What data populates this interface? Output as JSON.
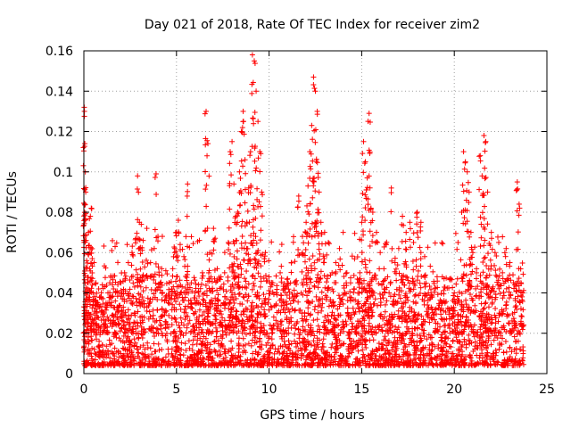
{
  "chart_data": {
    "type": "scatter",
    "title": "Day 021 of 2018, Rate Of TEC Index for receiver zim2",
    "xlabel": "GPS time / hours",
    "ylabel": "ROTI / TECUs",
    "xlim": [
      0,
      25
    ],
    "ylim": [
      0,
      0.16
    ],
    "x_ticks": [
      0,
      5,
      10,
      15,
      20,
      25
    ],
    "x_tick_labels": [
      "0",
      "5",
      "10",
      "15",
      "20",
      "25"
    ],
    "y_ticks": [
      0,
      0.02,
      0.04,
      0.06,
      0.08,
      0.1,
      0.12,
      0.14,
      0.16
    ],
    "y_tick_labels": [
      "0",
      "0.02",
      "0.04",
      "0.06",
      "0.08",
      "0.1",
      "0.12",
      "0.14",
      "0.16"
    ],
    "grid": true,
    "marker": "plus",
    "color": "#ff0000",
    "series": [
      {
        "name": "",
        "note_x_range_hours": [
          0,
          23.75
        ],
        "x": [
          0.0,
          0.02,
          0.03,
          0.05,
          0.08,
          0.1,
          0.12,
          0.15,
          0.2,
          0.25,
          0.3,
          0.35,
          0.4,
          0.45,
          0.5,
          0.55,
          0.6,
          0.65,
          0.7,
          0.75,
          0.8,
          0.9,
          1.0,
          1.1,
          1.2,
          1.3,
          1.4,
          1.5,
          1.6,
          1.7,
          1.8,
          1.9,
          2.0,
          2.2,
          2.4,
          2.6,
          2.8,
          2.9,
          3.0,
          3.1,
          3.2,
          3.4,
          3.6,
          3.8,
          3.9,
          4.0,
          4.2,
          4.4,
          4.6,
          4.8,
          4.9,
          5.0,
          5.1,
          5.2,
          5.4,
          5.6,
          5.8,
          6.0,
          6.2,
          6.4,
          6.6,
          6.7,
          6.8,
          7.0,
          7.2,
          7.4,
          7.6,
          7.8,
          7.9,
          8.0,
          8.1,
          8.2,
          8.3,
          8.4,
          8.5,
          8.6,
          8.7,
          8.8,
          8.9,
          9.0,
          9.1,
          9.2,
          9.3,
          9.4,
          9.5,
          9.6,
          9.8,
          10.0,
          10.2,
          10.4,
          10.6,
          10.8,
          11.0,
          11.2,
          11.4,
          11.6,
          11.8,
          12.0,
          12.1,
          12.2,
          12.3,
          12.4,
          12.5,
          12.6,
          12.7,
          12.8,
          13.0,
          13.2,
          13.4,
          13.6,
          13.8,
          14.0,
          14.2,
          14.4,
          14.6,
          14.8,
          14.9,
          15.0,
          15.1,
          15.2,
          15.3,
          15.4,
          15.5,
          15.6,
          15.8,
          16.0,
          16.2,
          16.4,
          16.6,
          16.8,
          17.0,
          17.2,
          17.4,
          17.6,
          17.8,
          18.0,
          18.2,
          18.4,
          18.6,
          18.8,
          19.0,
          19.5,
          20.0,
          20.2,
          20.4,
          20.5,
          20.6,
          20.7,
          20.8,
          20.9,
          21.0,
          21.2,
          21.4,
          21.5,
          21.6,
          21.7,
          21.8,
          22.0,
          22.2,
          22.4,
          22.6,
          22.8,
          23.0,
          23.2,
          23.4,
          23.5,
          23.6,
          23.7
        ],
        "y": [
          0.013,
          0.132,
          0.13,
          0.114,
          0.1,
          0.09,
          0.066,
          0.056,
          0.042,
          0.07,
          0.06,
          0.078,
          0.082,
          0.057,
          0.04,
          0.055,
          0.03,
          0.045,
          0.028,
          0.035,
          0.042,
          0.038,
          0.044,
          0.03,
          0.035,
          0.04,
          0.045,
          0.038,
          0.042,
          0.036,
          0.033,
          0.04,
          0.045,
          0.05,
          0.055,
          0.06,
          0.067,
          0.098,
          0.075,
          0.074,
          0.066,
          0.072,
          0.055,
          0.062,
          0.099,
          0.068,
          0.052,
          0.038,
          0.045,
          0.052,
          0.06,
          0.07,
          0.076,
          0.064,
          0.058,
          0.094,
          0.045,
          0.04,
          0.035,
          0.05,
          0.13,
          0.114,
          0.06,
          0.072,
          0.052,
          0.048,
          0.05,
          0.065,
          0.11,
          0.115,
          0.094,
          0.078,
          0.08,
          0.1,
          0.12,
          0.13,
          0.106,
          0.075,
          0.092,
          0.11,
          0.158,
          0.155,
          0.14,
          0.125,
          0.11,
          0.09,
          0.06,
          0.048,
          0.045,
          0.04,
          0.05,
          0.042,
          0.047,
          0.055,
          0.045,
          0.088,
          0.068,
          0.075,
          0.093,
          0.11,
          0.123,
          0.147,
          0.14,
          0.13,
          0.09,
          0.075,
          0.07,
          0.065,
          0.05,
          0.055,
          0.062,
          0.07,
          0.05,
          0.045,
          0.042,
          0.045,
          0.05,
          0.075,
          0.115,
          0.105,
          0.097,
          0.129,
          0.082,
          0.08,
          0.07,
          0.06,
          0.052,
          0.048,
          0.092,
          0.055,
          0.062,
          0.078,
          0.07,
          0.075,
          0.065,
          0.08,
          0.075,
          0.058,
          0.04,
          0.032,
          0.025,
          0.035,
          0.04,
          0.065,
          0.08,
          0.11,
          0.105,
          0.1,
          0.09,
          0.07,
          0.06,
          0.052,
          0.108,
          0.098,
          0.118,
          0.115,
          0.09,
          0.07,
          0.06,
          0.065,
          0.05,
          0.062,
          0.055,
          0.045,
          0.095,
          0.084,
          0.045,
          0.04
        ]
      }
    ]
  }
}
